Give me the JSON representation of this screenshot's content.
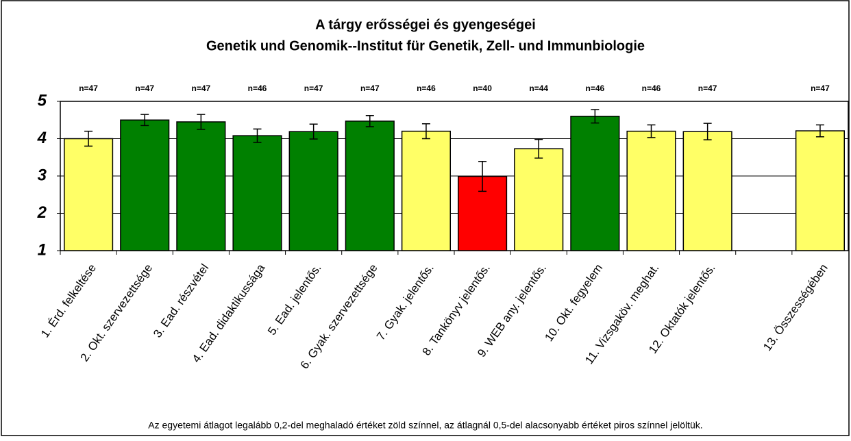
{
  "chart_data": {
    "type": "bar",
    "title": "A tárgy erősségei és gyengeségei",
    "subtitle": "Genetik und Genomik--Institut für Genetik, Zell- und Immunbiologie",
    "categories": [
      "1. Érd. felkeltése",
      "2. Okt. szervezettsége",
      "3. Ead. részvétel",
      "4. Ead. didaktikussága",
      "5. Ead. jelentős.",
      "6. Gyak. szervezettsége",
      "7. Gyak. jelentős.",
      "8. Tankönyv jelentős.",
      "9. WEB any. jelentős.",
      "10. Okt. fegyelem",
      "11. Vizsgaköv. meghat.",
      "12. Oktatók jelentős.",
      null,
      "13. Összességében"
    ],
    "values": [
      4.0,
      4.5,
      4.45,
      4.08,
      4.19,
      4.47,
      4.2,
      2.99,
      3.73,
      4.6,
      4.2,
      4.19,
      null,
      4.21
    ],
    "errors": [
      0.2,
      0.15,
      0.2,
      0.18,
      0.2,
      0.15,
      0.2,
      0.4,
      0.25,
      0.18,
      0.17,
      0.22,
      null,
      0.16
    ],
    "colors": [
      "#ffff66",
      "#008000",
      "#008000",
      "#008000",
      "#008000",
      "#008000",
      "#ffff66",
      "#ff0000",
      "#ffff66",
      "#008000",
      "#ffff66",
      "#ffff66",
      null,
      "#ffff66"
    ],
    "n_labels": [
      "n=47",
      "n=47",
      "n=47",
      "n=46",
      "n=47",
      "n=47",
      "n=46",
      "n=40",
      "n=44",
      "n=46",
      "n=46",
      "n=47",
      null,
      "n=47"
    ],
    "ylim": [
      1,
      5
    ],
    "yticks": [
      1,
      2,
      3,
      4,
      5
    ],
    "grid": true,
    "note": "Az egyetemi átlagot legalább 0,2-del meghaladó értéket zöld színnel, az átlagnál 0,5-del alacsonyabb értéket piros színnel jelöltük."
  }
}
